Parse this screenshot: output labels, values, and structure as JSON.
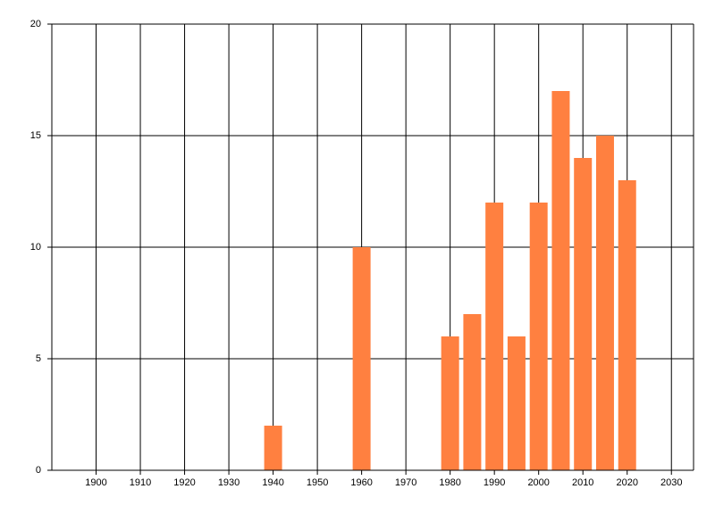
{
  "chart_data": {
    "type": "bar",
    "x": [
      1940,
      1960,
      1980,
      1985,
      1990,
      1995,
      2000,
      2005,
      2010,
      2015,
      2020
    ],
    "values": [
      2,
      10,
      6,
      7,
      12,
      6,
      12,
      17,
      14,
      15,
      13
    ],
    "color": "#ff8040",
    "xlim": [
      1890,
      2035
    ],
    "xticks": [
      1900,
      1910,
      1920,
      1930,
      1940,
      1950,
      1960,
      1970,
      1980,
      1990,
      2000,
      2010,
      2020,
      2030
    ],
    "ylim": [
      0,
      20
    ],
    "yticks": [
      0,
      5,
      10,
      15,
      20
    ],
    "grid": true
  }
}
